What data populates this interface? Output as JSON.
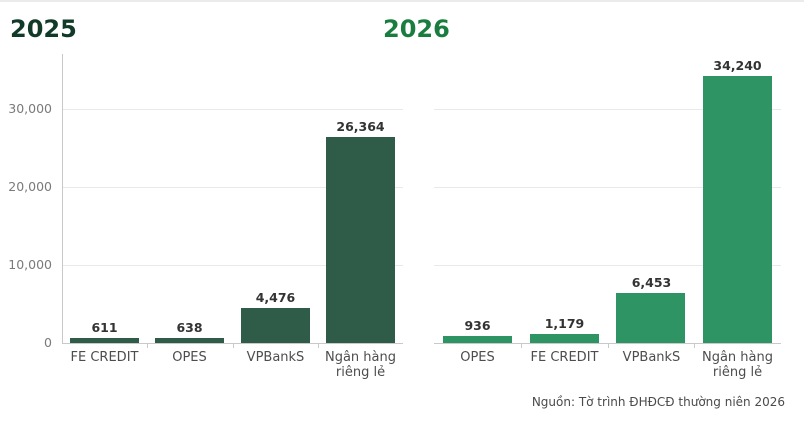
{
  "page": {
    "source_note": "Nguồn: Tờ trình ĐHĐCĐ thường niên 2026"
  },
  "chart_data": [
    {
      "type": "bar",
      "title": "2025",
      "title_color": "#123a28",
      "bar_color": "#2f5c48",
      "categories": [
        "FE CREDIT",
        "OPES",
        "VPBankS",
        "Ngân hàng riêng lẻ"
      ],
      "values": [
        611,
        638,
        4476,
        26364
      ],
      "value_labels": [
        "611",
        "638",
        "4,476",
        "26,364"
      ],
      "xlabel": "",
      "ylabel": "",
      "ylim": [
        0,
        37000
      ],
      "yticks": [
        0,
        10000,
        20000,
        30000
      ],
      "ytick_labels": [
        "0",
        "10,000",
        "20,000",
        "30,000"
      ],
      "grid": true,
      "legend": "none"
    },
    {
      "type": "bar",
      "title": "2026",
      "title_color": "#1a7d40",
      "bar_color": "#2f9463",
      "categories": [
        "OPES",
        "FE CREDIT",
        "VPBankS",
        "Ngân hàng riêng lẻ"
      ],
      "values": [
        936,
        1179,
        6453,
        34240
      ],
      "value_labels": [
        "936",
        "1,179",
        "6,453",
        "34,240"
      ],
      "xlabel": "",
      "ylabel": "",
      "ylim": [
        0,
        37000
      ],
      "yticks": [
        0,
        10000,
        20000,
        30000
      ],
      "grid": true,
      "legend": "none"
    }
  ]
}
